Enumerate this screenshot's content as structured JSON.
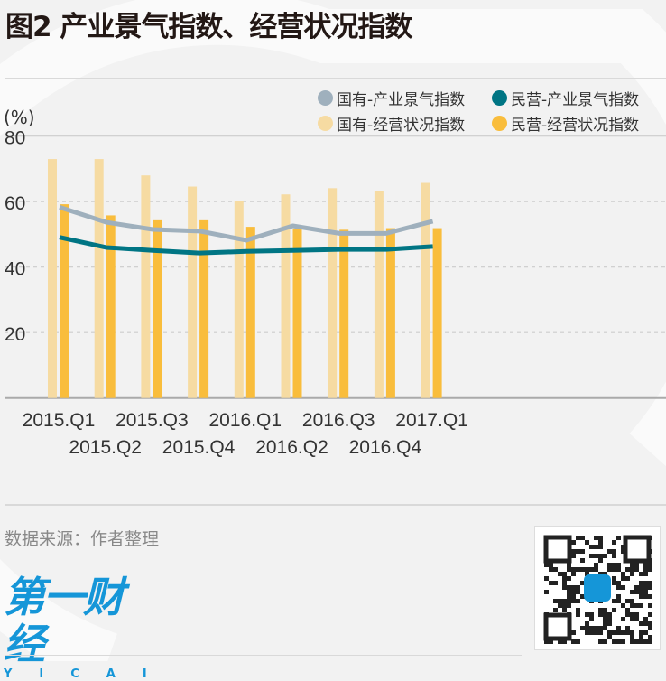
{
  "title": "图2 产业景气指数、经营状况指数",
  "unit": "(%)",
  "source": "数据来源：作者整理",
  "logo": {
    "cn": "第一财经",
    "en": "YICAI"
  },
  "colors": {
    "soe_prosperity": "#9fb0bd",
    "private_prosperity": "#007584",
    "soe_operating": "#f6dba2",
    "private_operating": "#f9bd3c",
    "logo": "#1596d8"
  },
  "chart_data": {
    "type": "bar+line",
    "title": "图2 产业景气指数、经营状况指数",
    "ylabel": "(%)",
    "ylim": [
      0,
      80
    ],
    "yticks": [
      20,
      40,
      60,
      80
    ],
    "grid": true,
    "legend_position": "top-right",
    "categories": [
      "2015.Q1",
      "2015.Q2",
      "2015.Q3",
      "2015.Q4",
      "2016.Q1",
      "2016.Q2",
      "2016.Q3",
      "2016.Q4",
      "2017.Q1"
    ],
    "series": [
      {
        "name": "国有-产业景气指数",
        "kind": "line",
        "values": [
          58.3,
          53.7,
          51.5,
          51.0,
          48.2,
          52.6,
          50.3,
          50.3,
          54.0
        ]
      },
      {
        "name": "民营-产业景气指数",
        "kind": "line",
        "values": [
          49.1,
          46.0,
          45.1,
          44.3,
          44.8,
          45.1,
          45.4,
          45.4,
          46.3
        ]
      },
      {
        "name": "国有-经营状况指数",
        "kind": "bar",
        "values": [
          73.0,
          73.0,
          68.0,
          64.6,
          60.2,
          62.2,
          64.1,
          63.2,
          65.7
        ]
      },
      {
        "name": "民营-经营状况指数",
        "kind": "bar",
        "values": [
          59.2,
          55.8,
          54.3,
          54.3,
          52.3,
          51.8,
          51.4,
          51.9,
          51.9
        ]
      }
    ]
  }
}
